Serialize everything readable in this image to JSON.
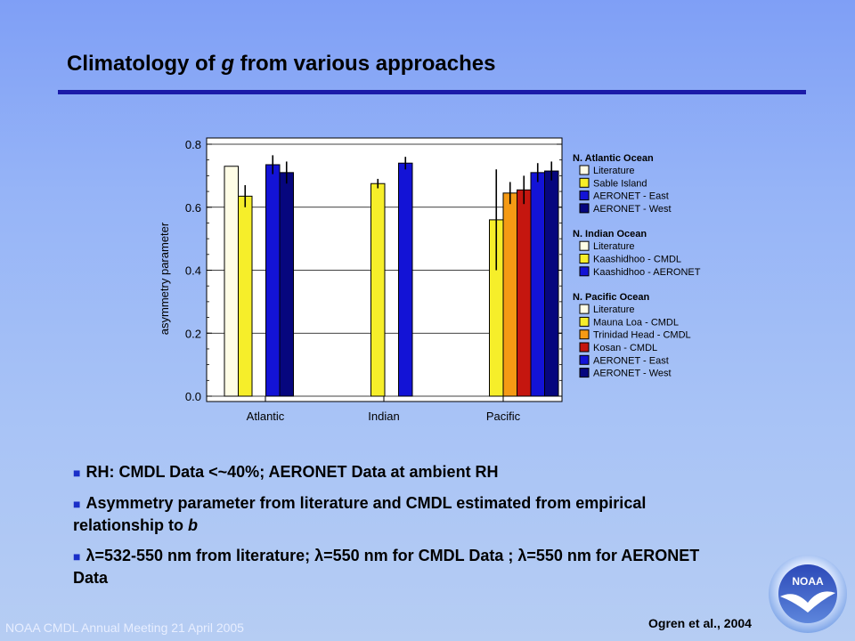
{
  "slide": {
    "title_pre": "Climatology of ",
    "title_var": "g",
    "title_post": " from various approaches",
    "footer": "NOAA CMDL Annual Meeting 21 April 2005",
    "citation": "Ogren et al., 2004",
    "logo_text": "NOAA"
  },
  "bullets": {
    "b1": "RH: CMDL Data <~40%; AERONET Data at ambient RH",
    "b2_text": "Asymmetry parameter from literature and CMDL estimated from empirical relationship to ",
    "b2_var": "b",
    "b3_l1": "λ",
    "b3_t1": "=532-550 nm from literature; ",
    "b3_l2": "λ",
    "b3_t2": "=550 nm for CMDL Data ; ",
    "b3_l3": "λ",
    "b3_t3": "=550 nm for AERONET Data",
    "marker": "■"
  },
  "chart_data": {
    "type": "bar",
    "ylabel": "asymmetry parameter",
    "ylim": [
      0.0,
      0.8
    ],
    "yticks": [
      "0.0",
      "0.2",
      "0.4",
      "0.6",
      "0.8"
    ],
    "grid": true,
    "legend_position": "right",
    "colors": {
      "Literature": "#fffde6",
      "Sable Island": "#f6ee2a",
      "Kaashidhoo - CMDL": "#f6ee2a",
      "Mauna Loa - CMDL": "#f6ee2a",
      "Trinidad Head - CMDL": "#f59a14",
      "Kosan - CMDL": "#c5160f",
      "AERONET - East": "#1313d6",
      "Kaashidhoo - AERONET": "#1313d6",
      "AERONET - West": "#06067e"
    },
    "groups": [
      {
        "name": "Atlantic",
        "legend_title": "N. Atlantic Ocean",
        "bars": [
          {
            "series": "Literature",
            "value": 0.73,
            "err": null
          },
          {
            "series": "Sable Island",
            "value": 0.635,
            "err": [
              0.6,
              0.67
            ]
          },
          {
            "series": null,
            "value": null,
            "err": null
          },
          {
            "series": "AERONET - East",
            "value": 0.735,
            "err": [
              0.705,
              0.765
            ]
          },
          {
            "series": "AERONET - West",
            "value": 0.71,
            "err": [
              0.675,
              0.745
            ]
          }
        ]
      },
      {
        "name": "Indian",
        "legend_title": "N. Indian Ocean",
        "bars": [
          {
            "series": "Literature",
            "value": null,
            "err": null
          },
          {
            "series": "Kaashidhoo - CMDL",
            "value": 0.675,
            "err": [
              0.66,
              0.69
            ]
          },
          {
            "series": null,
            "value": null,
            "err": null
          },
          {
            "series": "Kaashidhoo - AERONET",
            "value": 0.74,
            "err": [
              0.72,
              0.76
            ]
          }
        ]
      },
      {
        "name": "Pacific",
        "legend_title": "N. Pacific Ocean",
        "bars": [
          {
            "series": "Literature",
            "value": null,
            "err": null
          },
          {
            "series": "Mauna Loa - CMDL",
            "value": 0.56,
            "err": [
              0.4,
              0.72
            ]
          },
          {
            "series": "Trinidad Head - CMDL",
            "value": 0.645,
            "err": [
              0.61,
              0.68
            ]
          },
          {
            "series": "Kosan - CMDL",
            "value": 0.655,
            "err": [
              0.61,
              0.7
            ]
          },
          {
            "series": "AERONET - East",
            "value": 0.71,
            "err": [
              0.68,
              0.74
            ]
          },
          {
            "series": "AERONET - West",
            "value": 0.715,
            "err": [
              0.685,
              0.745
            ]
          }
        ]
      }
    ],
    "legend": [
      {
        "title": "N. Atlantic Ocean",
        "items": [
          "Literature",
          "Sable Island",
          "AERONET - East",
          "AERONET - West"
        ]
      },
      {
        "title": "N. Indian Ocean",
        "items": [
          "Literature",
          "Kaashidhoo - CMDL",
          "Kaashidhoo - AERONET"
        ]
      },
      {
        "title": "N. Pacific Ocean",
        "items": [
          "Literature",
          "Mauna Loa - CMDL",
          "Trinidad Head - CMDL",
          "Kosan - CMDL",
          "AERONET - East",
          "AERONET - West"
        ]
      }
    ]
  }
}
